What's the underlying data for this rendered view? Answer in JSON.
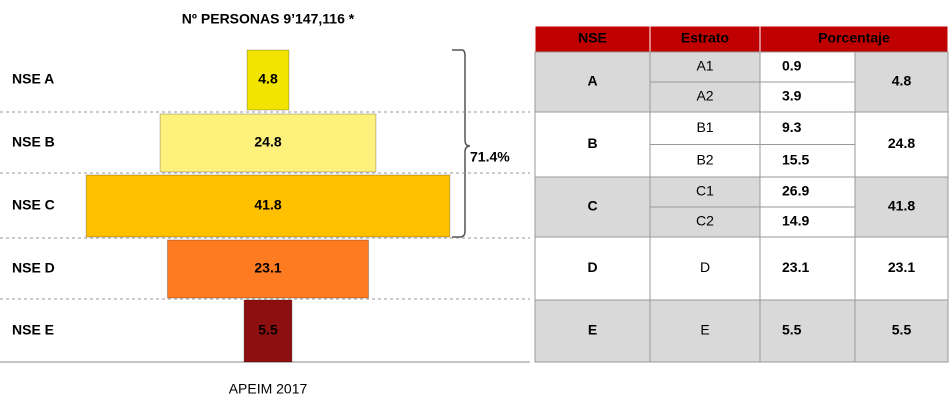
{
  "chart_data": {
    "type": "pyramid",
    "title": "Nº PERSONAS 9’147,116 *",
    "categories": [
      "NSE A",
      "NSE B",
      "NSE C",
      "NSE D",
      "NSE E"
    ],
    "values": [
      4.8,
      24.8,
      41.8,
      23.1,
      5.5
    ],
    "colors": [
      "#f3e400",
      "#fff27c",
      "#ffc000",
      "#ff7b22",
      "#8e0f0f"
    ],
    "annotation": "71.4%",
    "source": "APEIM 2017"
  },
  "table": {
    "headers": [
      "NSE",
      "Estrato",
      "Porcentaje"
    ],
    "groups": [
      {
        "nse": "A",
        "strata": [
          {
            "name": "A1",
            "pct": 0.9
          },
          {
            "name": "A2",
            "pct": 3.9
          }
        ],
        "total": 4.8
      },
      {
        "nse": "B",
        "strata": [
          {
            "name": "B1",
            "pct": 9.3
          },
          {
            "name": "B2",
            "pct": 15.5
          }
        ],
        "total": 24.8
      },
      {
        "nse": "C",
        "strata": [
          {
            "name": "C1",
            "pct": 26.9
          },
          {
            "name": "C2",
            "pct": 14.9
          }
        ],
        "total": 41.8
      },
      {
        "nse": "D",
        "strata": [
          {
            "name": "D",
            "pct": 23.1
          }
        ],
        "total": 23.1
      },
      {
        "nse": "E",
        "strata": [
          {
            "name": "E",
            "pct": 5.5
          }
        ],
        "total": 5.5
      }
    ]
  }
}
